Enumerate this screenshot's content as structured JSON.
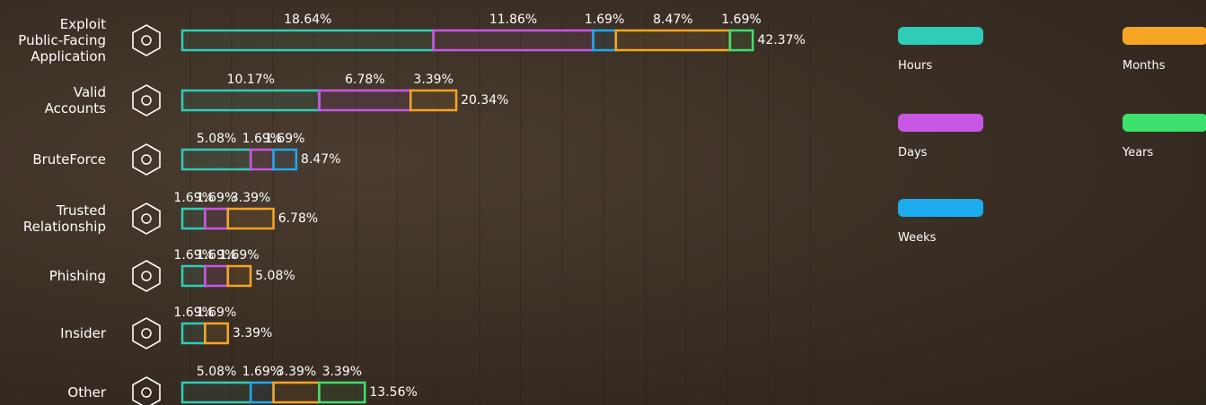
{
  "chart_data": {
    "type": "stacked-bar-horizontal",
    "categories": [
      "Exploit Public-Facing Application",
      "Valid Accounts",
      "BruteForce",
      "Trusted Relationship",
      "Phishing",
      "Insider",
      "Other"
    ],
    "series": [
      {
        "name": "Hours",
        "color": "#2fcdb8",
        "values": [
          18.64,
          10.17,
          5.08,
          1.69,
          1.69,
          1.69,
          5.08
        ],
        "value_labels": [
          "18.64%",
          "10.17%",
          "5.08%",
          "1.69%",
          "1.69%",
          "1.69%",
          "5.08%"
        ]
      },
      {
        "name": "Days",
        "color": "#c957e6",
        "values": [
          11.86,
          6.78,
          1.69,
          1.69,
          1.69,
          null,
          null
        ],
        "value_labels": [
          "11.86%",
          "6.78%",
          "1.69%",
          "1.69%",
          "1.69%",
          null,
          null
        ]
      },
      {
        "name": "Weeks",
        "color": "#1eaaee",
        "values": [
          1.69,
          null,
          1.69,
          null,
          null,
          null,
          1.69
        ],
        "value_labels": [
          "1.69%",
          null,
          "1.69%",
          null,
          null,
          null,
          "1.69%"
        ]
      },
      {
        "name": "Months",
        "color": "#f7a524",
        "values": [
          8.47,
          3.39,
          null,
          3.39,
          1.69,
          1.69,
          3.39
        ],
        "value_labels": [
          "8.47%",
          "3.39%",
          null,
          "3.39%",
          "1.69%",
          "1.69%",
          "3.39%"
        ]
      },
      {
        "name": "Years",
        "color": "#3ee06c",
        "values": [
          1.69,
          null,
          null,
          null,
          null,
          null,
          3.39
        ],
        "value_labels": [
          "1.69%",
          null,
          null,
          null,
          null,
          null,
          "3.39%"
        ]
      }
    ],
    "totals": [
      42.37,
      20.34,
      8.47,
      6.78,
      5.08,
      3.39,
      13.56
    ],
    "total_labels": [
      "42.37%",
      "20.34%",
      "8.47%",
      "6.78%",
      "5.08%",
      "3.39%",
      "13.56%"
    ]
  }
}
